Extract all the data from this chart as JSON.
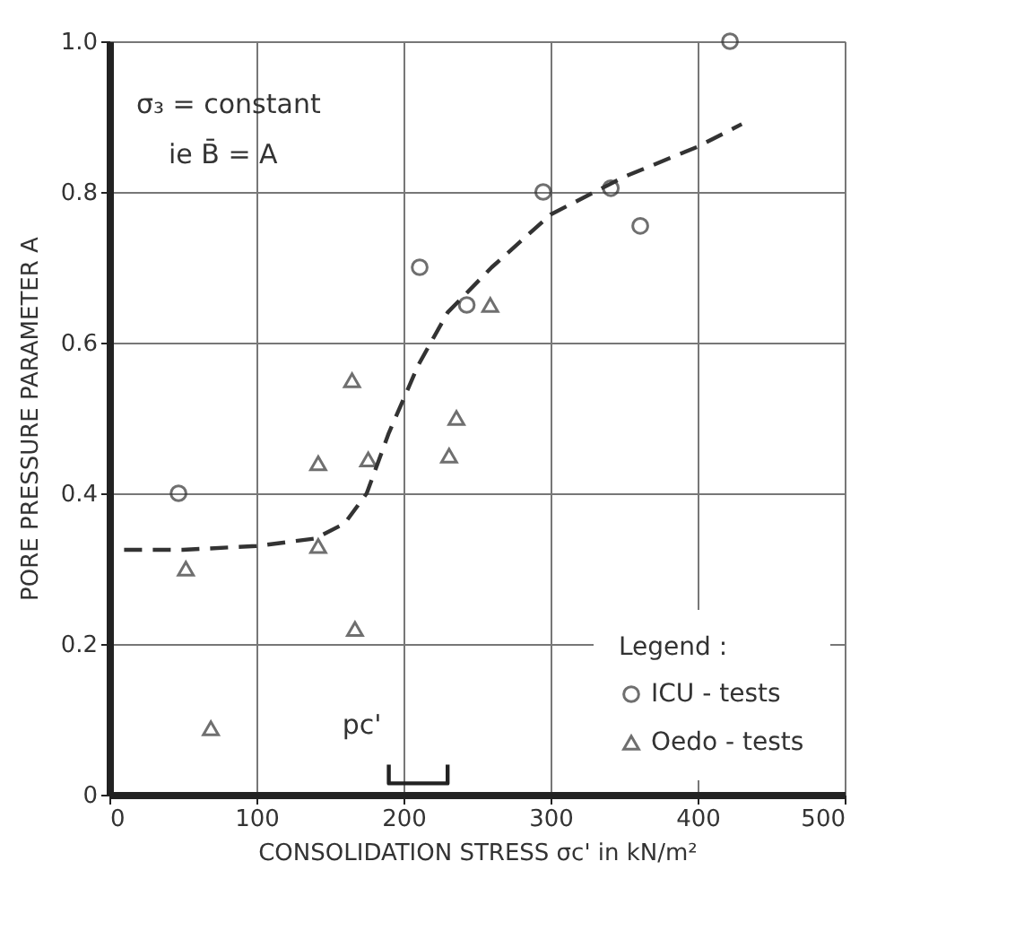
{
  "chart_data": {
    "type": "scatter",
    "xlabel": "CONSOLIDATION STRESS σc' in kN/m²",
    "ylabel": "PORE PRESSURE PARAMETER A",
    "legend_title": "Legend :",
    "annotations": [
      "σ₃ = constant",
      "ie B̄ = A",
      {
        "text": "pc'",
        "x": 190,
        "y": 0.04
      }
    ],
    "xlim": [
      0,
      500
    ],
    "xticks": [
      0,
      100,
      200,
      300,
      400,
      500
    ],
    "ylim": [
      0,
      1.0
    ],
    "yticks": [
      0,
      0.2,
      0.4,
      0.6,
      0.8,
      {
        "value": 1.0,
        "label": "1.0"
      }
    ],
    "grid": true,
    "legend": "bottom right",
    "series": [
      {
        "type": "line",
        "color": "#333333",
        "line_style": "dashed",
        "marker": "none",
        "x": [
          10,
          50,
          100,
          140,
          160,
          175,
          190,
          210,
          230,
          260,
          300,
          350,
          400,
          430
        ],
        "values": [
          0.325,
          0.325,
          0.33,
          0.34,
          0.36,
          0.4,
          0.48,
          0.57,
          0.64,
          0.7,
          0.77,
          0.82,
          0.86,
          0.89
        ]
      },
      {
        "type": "line",
        "color": "#222222",
        "line_style": "solid",
        "marker": "none",
        "x": [
          190,
          190,
          230,
          230
        ],
        "values": [
          0.04,
          0.015,
          0.015,
          0.04
        ]
      },
      {
        "name": "ICU - tests",
        "color": "#333333",
        "marker": "circle",
        "x": [
          47,
          211,
          243,
          295,
          341,
          361,
          422
        ],
        "values": [
          0.4,
          0.7,
          0.65,
          0.8,
          0.805,
          0.755,
          1.0
        ]
      },
      {
        "name": "Oedo - tests",
        "color": "#333333",
        "marker": "triangle",
        "x": [
          52,
          69,
          142,
          142,
          176,
          167,
          165,
          236,
          231,
          259
        ],
        "values": [
          0.3,
          0.088,
          0.44,
          0.33,
          0.445,
          0.22,
          0.55,
          0.5,
          0.45,
          0.65
        ]
      }
    ]
  }
}
